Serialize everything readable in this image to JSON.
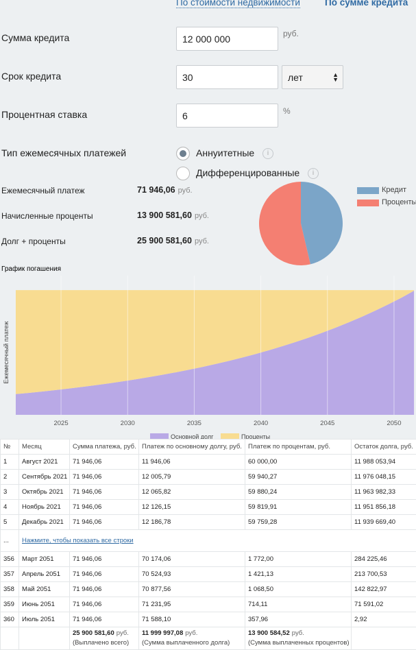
{
  "tabs": [
    "По стоимости недвижимости",
    "По сумме кредита"
  ],
  "form": {
    "amount": {
      "label": "Сумма кредита",
      "value": "12 000 000",
      "unit": "руб."
    },
    "term": {
      "label": "Срок кредита",
      "value": "30",
      "unit": "лет"
    },
    "rate": {
      "label": "Процентная ставка",
      "value": "6",
      "unit": "%"
    },
    "payment_type": {
      "label": "Тип ежемесячных платежей",
      "options": [
        "Аннуитетные",
        "Дифференцированные"
      ],
      "selected": 0
    }
  },
  "results": [
    {
      "label": "Ежемесячный платеж",
      "value": "71 946,06",
      "unit": "руб."
    },
    {
      "label": "Начисленные проценты",
      "value": "13 900 581,60",
      "unit": "руб."
    },
    {
      "label": "Долг + проценты",
      "value": "25 900 581,60",
      "unit": "руб."
    }
  ],
  "chart_data": [
    {
      "type": "pie",
      "categories": [
        "Кредит",
        "Проценты"
      ],
      "values": [
        12000000,
        13900581.6
      ],
      "colors": [
        "#7ba5c8",
        "#f47f72"
      ]
    },
    {
      "type": "area",
      "stacked": true,
      "title": "График погашения",
      "y_label": "Ежемесячный платеж",
      "x": [
        2021.6,
        2022.6,
        2023.6,
        2024.6,
        2025.6,
        2026.6,
        2027.6,
        2028.6,
        2029.6,
        2030.6,
        2031.6,
        2032.6,
        2033.6,
        2034.6,
        2035.6,
        2036.6,
        2037.6,
        2038.6,
        2039.6,
        2040.6,
        2041.6,
        2042.6,
        2043.6,
        2044.6,
        2045.6,
        2046.6,
        2047.6,
        2048.6,
        2049.6,
        2050.6,
        2051.5
      ],
      "series": [
        {
          "name": "Основной долг",
          "color": "#b9a9e6",
          "values": [
            11946,
            12683,
            13465,
            14296,
            15177,
            16113,
            17107,
            18163,
            19283,
            20472,
            21735,
            23075,
            24498,
            26010,
            27614,
            29317,
            31125,
            33045,
            35083,
            37247,
            39544,
            41983,
            44572,
            47322,
            50241,
            53339,
            56629,
            60121,
            63830,
            67767,
            71588
          ]
        },
        {
          "name": "Проценты",
          "color": "#f8dc91",
          "values": [
            60000,
            59263,
            58481,
            57650,
            56769,
            55833,
            54839,
            53783,
            52663,
            51474,
            50211,
            48871,
            47448,
            45936,
            44332,
            42629,
            40821,
            38901,
            36863,
            34699,
            32402,
            29963,
            27374,
            24624,
            21705,
            18607,
            15317,
            11825,
            8116,
            4179,
            358
          ]
        }
      ],
      "xlim": [
        2021.55,
        2051.65
      ],
      "ylim": [
        0,
        72000
      ],
      "xticks": [
        2025,
        2030,
        2035,
        2040,
        2045,
        2050
      ],
      "grid": true
    }
  ],
  "table": {
    "columns": [
      "№",
      "Месяц",
      "Сумма платежа, руб.",
      "Платеж по основному долгу, руб.",
      "Платеж по процентам, руб.",
      "Остаток долга, руб."
    ],
    "rows_top": [
      [
        "1",
        "Август 2021",
        "71 946,06",
        "11 946,06",
        "60 000,00",
        "11 988 053,94"
      ],
      [
        "2",
        "Сентябрь 2021",
        "71 946,06",
        "12 005,79",
        "59 940,27",
        "11 976 048,15"
      ],
      [
        "3",
        "Октябрь 2021",
        "71 946,06",
        "12 065,82",
        "59 880,24",
        "11 963 982,33"
      ],
      [
        "4",
        "Ноябрь 2021",
        "71 946,06",
        "12 126,15",
        "59 819,91",
        "11 951 856,18"
      ],
      [
        "5",
        "Декабрь 2021",
        "71 946,06",
        "12 186,78",
        "59 759,28",
        "11 939 669,40"
      ]
    ],
    "ellipsis": "...",
    "show_all": "Нажмите, чтобы показать все строки",
    "rows_bottom": [
      [
        "356",
        "Март 2051",
        "71 946,06",
        "70 174,06",
        "1 772,00",
        "284 225,46"
      ],
      [
        "357",
        "Апрель 2051",
        "71 946,06",
        "70 524,93",
        "1 421,13",
        "213 700,53"
      ],
      [
        "358",
        "Май 2051",
        "71 946,06",
        "70 877,56",
        "1 068,50",
        "142 822,97"
      ],
      [
        "359",
        "Июнь 2051",
        "71 946,06",
        "71 231,95",
        "714,11",
        "71 591,02"
      ],
      [
        "360",
        "Июль 2051",
        "71 946,06",
        "71 588,10",
        "357,96",
        "2,92"
      ]
    ],
    "totals": [
      {
        "value": "25 900 581,60",
        "unit": "руб.",
        "note": "(Выплачено всего)"
      },
      {
        "value": "11 999 997,08",
        "unit": "руб.",
        "note": "(Сумма выплаченного долга)"
      },
      {
        "value": "13 900 584,52",
        "unit": "руб.",
        "note": "(Сумма выплаченных процентов)"
      }
    ]
  }
}
